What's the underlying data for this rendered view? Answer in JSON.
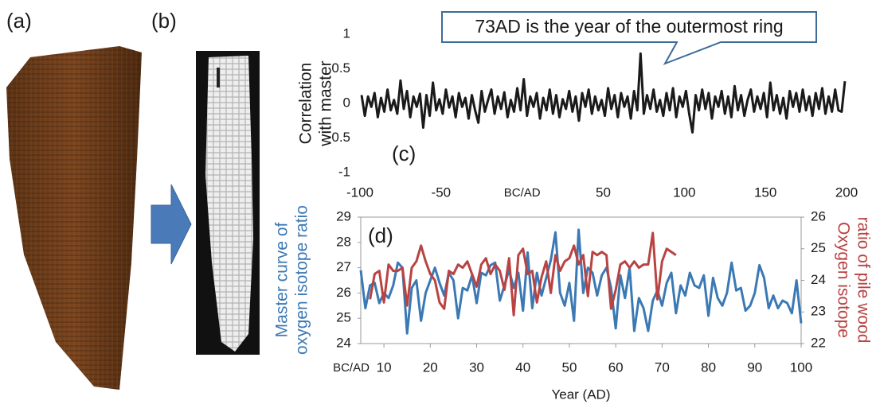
{
  "panels": [
    "(a)",
    "(b)"
  ],
  "chart_data": [
    {
      "type": "line",
      "panel_label": "(c)",
      "annotation": "73AD is the year of the outermost ring",
      "y_label": [
        "Correlation",
        "with master"
      ],
      "color": "#1a1a1a",
      "xlim": [
        -100,
        200
      ],
      "ylim": [
        -1,
        1
      ],
      "xticks": [
        -100,
        -50,
        {
          "value": 0,
          "label": "BC/AD"
        },
        50,
        100,
        150,
        200
      ],
      "yticks": [
        1,
        0.5,
        0,
        -0.5,
        -1
      ],
      "x": [
        -99,
        -97,
        -95,
        -93,
        -91,
        -89,
        -87,
        -85,
        -83,
        -81,
        -79,
        -77,
        -75,
        -73,
        -71,
        -69,
        -67,
        -65,
        -63,
        -61,
        -59,
        -57,
        -55,
        -53,
        -51,
        -49,
        -47,
        -45,
        -43,
        -41,
        -39,
        -37,
        -35,
        -33,
        -31,
        -29,
        -27,
        -25,
        -23,
        -21,
        -19,
        -17,
        -15,
        -13,
        -11,
        -9,
        -7,
        -5,
        -3,
        -1,
        1,
        3,
        5,
        7,
        9,
        11,
        13,
        15,
        17,
        19,
        21,
        23,
        25,
        27,
        29,
        31,
        33,
        35,
        37,
        39,
        41,
        43,
        45,
        47,
        49,
        51,
        53,
        55,
        57,
        59,
        61,
        63,
        65,
        67,
        69,
        71,
        73,
        75,
        77,
        79,
        81,
        83,
        85,
        87,
        89,
        91,
        93,
        95,
        97,
        99,
        101,
        103,
        105,
        107,
        109,
        111,
        113,
        115,
        117,
        119,
        121,
        123,
        125,
        127,
        129,
        131,
        133,
        135,
        137,
        139,
        141,
        143,
        145,
        147,
        149,
        151,
        153,
        155,
        157,
        159,
        161,
        163,
        165,
        167,
        169,
        171,
        173,
        175,
        177,
        179,
        181,
        183,
        185,
        187,
        189,
        191,
        193,
        195,
        197,
        199
      ],
      "values": [
        0.12,
        -0.18,
        0.1,
        -0.05,
        0.15,
        -0.2,
        0.08,
        -0.12,
        0.2,
        -0.1,
        0.05,
        -0.15,
        0.33,
        -0.08,
        0.18,
        -0.2,
        0.1,
        -0.05,
        0.14,
        -0.35,
        0.12,
        -0.18,
        0.3,
        -0.1,
        0.06,
        -0.15,
        0.2,
        -0.06,
        0.1,
        -0.2,
        0.15,
        -0.05,
        0.08,
        -0.22,
        0.12,
        -0.1,
        -0.28,
        0.18,
        -0.12,
        0.05,
        0.2,
        -0.15,
        0.1,
        -0.08,
        0.16,
        -0.2,
        0.05,
        -0.12,
        0.22,
        -0.1,
        0.35,
        -0.18,
        0.1,
        -0.05,
        0.15,
        -0.22,
        0.08,
        -0.1,
        0.2,
        -0.15,
        0.12,
        -0.2,
        0.06,
        -0.08,
        0.18,
        -0.12,
        0.1,
        -0.25,
        0.15,
        -0.05,
        0.2,
        -0.15,
        0.1,
        -0.1,
        0.05,
        -0.18,
        0.22,
        -0.08,
        0.12,
        -0.2,
        0.15,
        -0.05,
        0.1,
        -0.22,
        0.18,
        -0.1,
        0.72,
        -0.15,
        0.12,
        -0.08,
        0.2,
        -0.12,
        0.05,
        -0.18,
        0.15,
        -0.1,
        0.22,
        -0.2,
        0.1,
        -0.05,
        0.18,
        -0.15,
        -0.42,
        0.12,
        -0.1,
        0.2,
        -0.08,
        0.15,
        -0.22,
        0.1,
        -0.05,
        0.18,
        -0.15,
        0.1,
        -0.2,
        0.25,
        -0.1,
        0.12,
        -0.18,
        0.05,
        0.2,
        -0.12,
        0.1,
        -0.08,
        0.15,
        -0.2,
        0.3,
        -0.1,
        0.12,
        -0.15,
        0.08,
        -0.22,
        0.18,
        -0.05,
        0.15,
        -0.12,
        0.2,
        -0.1,
        0.1,
        -0.18,
        0.15,
        -0.08,
        0.22,
        -0.15,
        0.1,
        -0.12,
        0.2,
        -0.1,
        -0.12,
        0.32
      ]
    },
    {
      "type": "line",
      "panel_label": "(d)",
      "x_label": "Year (AD)",
      "origin_label": "BC/AD",
      "y_label": [
        "Master curve of",
        "oxygen isotope ratio"
      ],
      "y2_label": [
        "Oxygen isotope",
        "ratio of pile wood"
      ],
      "xlim": [
        5,
        100
      ],
      "ylim": [
        24,
        29
      ],
      "y2lim": [
        22,
        26
      ],
      "xticks": [
        10,
        20,
        30,
        40,
        50,
        60,
        70,
        80,
        90,
        100
      ],
      "yticks": [
        24,
        25,
        26,
        27,
        28,
        29
      ],
      "y2ticks": [
        22,
        23,
        24,
        25,
        26
      ],
      "x": [
        5,
        6,
        7,
        8,
        9,
        10,
        11,
        12,
        13,
        14,
        15,
        16,
        17,
        18,
        19,
        20,
        21,
        22,
        23,
        24,
        25,
        26,
        27,
        28,
        29,
        30,
        31,
        32,
        33,
        34,
        35,
        36,
        37,
        38,
        39,
        40,
        41,
        42,
        43,
        44,
        45,
        46,
        47,
        48,
        49,
        50,
        51,
        52,
        53,
        54,
        55,
        56,
        57,
        58,
        59,
        60,
        61,
        62,
        63,
        64,
        65,
        66,
        67,
        68,
        69,
        70,
        71,
        72,
        73,
        74,
        75,
        76,
        77,
        78,
        79,
        80,
        81,
        82,
        83,
        84,
        85,
        86,
        87,
        88,
        89,
        90,
        91,
        92,
        93,
        94,
        95,
        96,
        97,
        98,
        99,
        100
      ],
      "series": [
        {
          "color": "#3b79b4",
          "axis": "y",
          "values": [
            26.9,
            25.4,
            26.3,
            26.4,
            25.6,
            26.0,
            25.8,
            26.3,
            27.2,
            27.0,
            24.4,
            26.2,
            26.5,
            24.9,
            26.0,
            26.5,
            27.0,
            26.4,
            25.9,
            26.8,
            26.5,
            25.0,
            26.2,
            26.1,
            26.7,
            25.6,
            26.8,
            26.7,
            27.1,
            27.2,
            25.7,
            26.3,
            26.9,
            26.2,
            26.8,
            25.3,
            27.6,
            25.4,
            26.8,
            25.9,
            26.6,
            27.3,
            28.4,
            26.0,
            25.5,
            26.4,
            24.9,
            28.5,
            26.0,
            27.0,
            26.8,
            25.9,
            26.7,
            27.0,
            26.2,
            24.6,
            26.7,
            25.8,
            27.0,
            24.5,
            25.8,
            25.4,
            24.5,
            25.7,
            26.1,
            25.5,
            26.4,
            26.8,
            25.2,
            26.3,
            25.9,
            26.8,
            26.3,
            26.2,
            26.7,
            25.1,
            26.6,
            25.8,
            25.5,
            26.0,
            27.2,
            26.1,
            26.2,
            25.3,
            25.5,
            26.0,
            27.1,
            26.6,
            25.4,
            25.9,
            25.4,
            25.7,
            25.6,
            25.2,
            26.5,
            24.8
          ]
        },
        {
          "color": "#b94343",
          "axis": "y2",
          "values": [
            null,
            null,
            23.4,
            24.2,
            24.3,
            23.3,
            24.5,
            24.3,
            24.3,
            24.4,
            23.2,
            24.4,
            24.6,
            25.1,
            24.6,
            24.2,
            24.0,
            23.3,
            23.1,
            24.3,
            24.2,
            24.5,
            24.4,
            24.6,
            24.2,
            23.8,
            24.5,
            24.7,
            24.2,
            24.5,
            24.3,
            23.7,
            24.7,
            22.9,
            24.8,
            25.0,
            24.2,
            24.3,
            23.3,
            24.1,
            24.6,
            23.6,
            24.8,
            24.3,
            24.6,
            24.7,
            25.1,
            24.5,
            24.8,
            23.5,
            24.9,
            24.8,
            24.9,
            24.8,
            23.1,
            23.7,
            24.5,
            24.6,
            24.4,
            24.6,
            24.4,
            24.5,
            24.5,
            25.5,
            23.4,
            24.6,
            25.0,
            24.9,
            24.8,
            null,
            null,
            null,
            null,
            null,
            null,
            null,
            null,
            null,
            null,
            null,
            null,
            null,
            null,
            null,
            null,
            null,
            null,
            null,
            null,
            null,
            null,
            null,
            null,
            null,
            null,
            null
          ]
        }
      ]
    }
  ]
}
